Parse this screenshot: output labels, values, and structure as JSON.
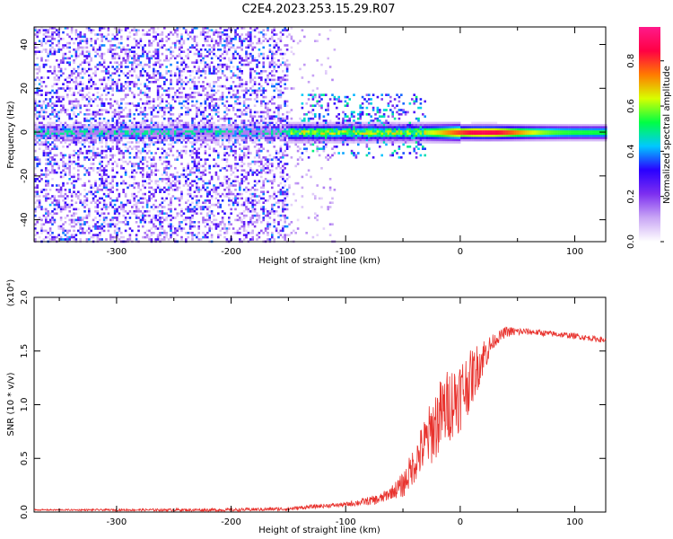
{
  "title": "C2E4.2023.253.15.29.R07",
  "chart_data": [
    {
      "type": "heatmap",
      "xlabel": "Height of straight line (km)",
      "ylabel": "Frequency (Hz)",
      "xlim": [
        -372,
        127
      ],
      "ylim": [
        -50,
        48
      ],
      "xticks": [
        -300,
        -200,
        -100,
        0,
        100
      ],
      "yticks": [
        -40,
        -20,
        0,
        20,
        40
      ],
      "colorbar": {
        "label": "Normalized spectral amplitude",
        "range": [
          0.0,
          0.95
        ],
        "ticks": [
          "0.0",
          "0.2",
          "0.4",
          "0.6",
          "0.8"
        ],
        "colormap": [
          "#ffffff",
          "#c9a6f5",
          "#7d2ff0",
          "#2a00ff",
          "#00c8ff",
          "#00ff44",
          "#d8ff00",
          "#ff7a00",
          "#ff0044",
          "#ff1a8a"
        ]
      },
      "features": {
        "noise_region_x": [
          -372,
          -150
        ],
        "noise_amplitude": 0.25,
        "carrier_frequency_hz": 0,
        "carrier_from_x": -150,
        "carrier_peak_amplitude": 0.9,
        "carrier_peak_x": [
          -30,
          60
        ],
        "spread_frequency_hz": [
          -12,
          18
        ]
      }
    },
    {
      "type": "line",
      "xlabel": "Height of straight line (km)",
      "ylabel": "SNR (10 * v/v)",
      "ylabel_multiplier": "(x10⁴)",
      "xlim": [
        -372,
        127
      ],
      "ylim": [
        0.0,
        2.0
      ],
      "xticks": [
        -300,
        -200,
        -100,
        0,
        100
      ],
      "yticks": [
        "0.0",
        "0.5",
        "1.0",
        "1.5",
        "2.0"
      ],
      "color": "#e8322d",
      "samples": 1400,
      "envelope": {
        "x": [
          -372,
          -300,
          -200,
          -150,
          -130,
          -100,
          -70,
          -50,
          -40,
          -30,
          -20,
          -10,
          0,
          10,
          20,
          30,
          40,
          60,
          80,
          100,
          127
        ],
        "y": [
          0.02,
          0.02,
          0.02,
          0.03,
          0.05,
          0.07,
          0.12,
          0.25,
          0.45,
          0.65,
          0.85,
          1.0,
          1.1,
          1.25,
          1.45,
          1.6,
          1.68,
          1.68,
          1.66,
          1.64,
          1.6
        ]
      },
      "noise": {
        "x": [
          -372,
          -100,
          -60,
          -40,
          -20,
          0,
          20,
          30,
          60,
          127
        ],
        "y": [
          0.006,
          0.02,
          0.06,
          0.18,
          0.35,
          0.35,
          0.18,
          0.06,
          0.03,
          0.025
        ]
      }
    }
  ]
}
